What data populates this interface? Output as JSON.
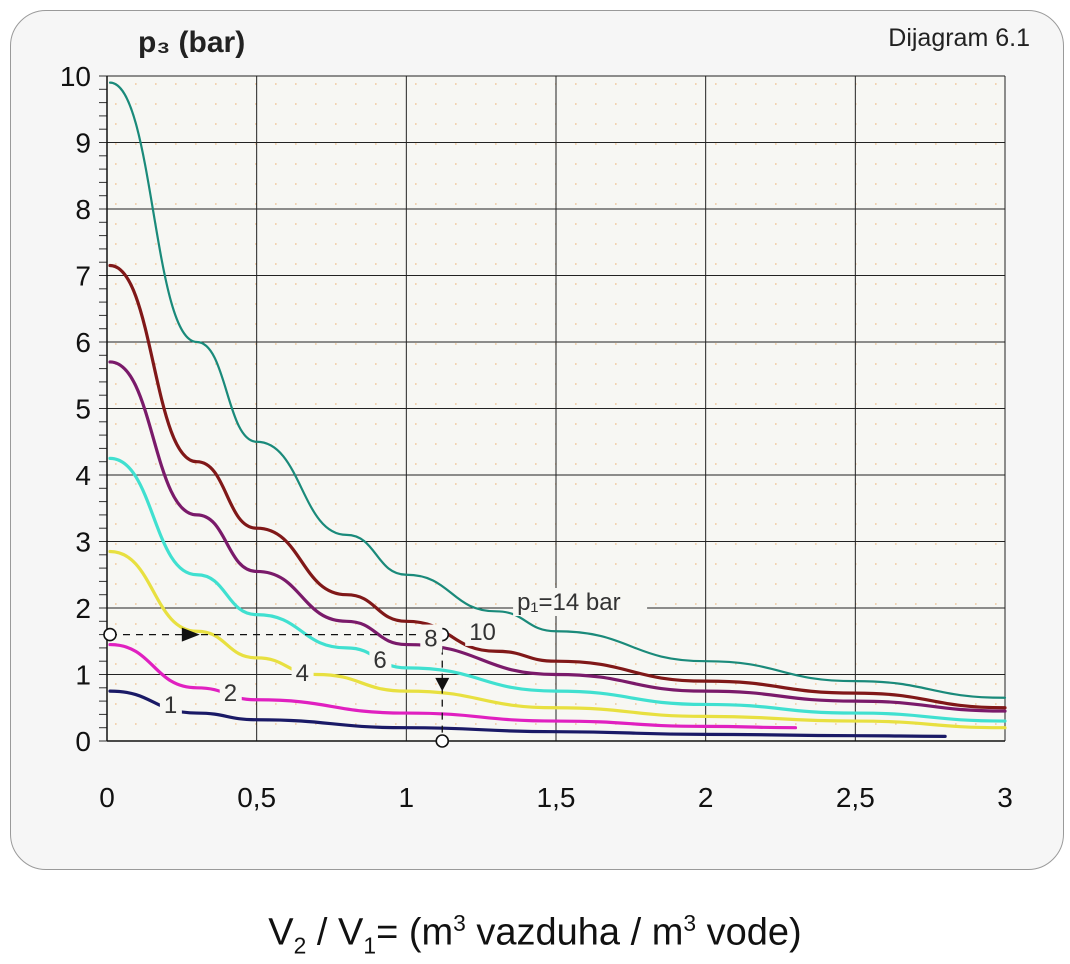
{
  "chart_data": {
    "type": "line",
    "tag": "Dijagram 6.1",
    "ylabel": "p₃ (bar)",
    "xlabel_parts": {
      "v2": "V",
      "sub2": "2",
      "slash": " / ",
      "v1": "V",
      "sub1": "1",
      "eq": "= (m",
      "sup_a": "3",
      "mid": " vazduha / m",
      "sup_b": "3",
      "end": " vode)"
    },
    "xlim": [
      0,
      3
    ],
    "ylim": [
      0,
      10
    ],
    "x_ticks": [
      {
        "value": 0,
        "label": "0"
      },
      {
        "value": 0.5,
        "label": "0,5"
      },
      {
        "value": 1,
        "label": "1"
      },
      {
        "value": 1.5,
        "label": "1,5"
      },
      {
        "value": 2,
        "label": "2"
      },
      {
        "value": 2.5,
        "label": "2,5"
      },
      {
        "value": 3,
        "label": "3"
      }
    ],
    "y_ticks": [
      {
        "value": 0,
        "label": "0"
      },
      {
        "value": 1,
        "label": "1"
      },
      {
        "value": 2,
        "label": "2"
      },
      {
        "value": 3,
        "label": "3"
      },
      {
        "value": 4,
        "label": "4"
      },
      {
        "value": 5,
        "label": "5"
      },
      {
        "value": 6,
        "label": "6"
      },
      {
        "value": 7,
        "label": "7"
      },
      {
        "value": 8,
        "label": "8"
      },
      {
        "value": 9,
        "label": "9"
      },
      {
        "value": 10,
        "label": "10"
      }
    ],
    "grid": true,
    "series": [
      {
        "name": "1",
        "color": "#1a1a66",
        "x_end": 2.8,
        "points": [
          [
            0.01,
            0.75
          ],
          [
            0.3,
            0.42
          ],
          [
            0.5,
            0.32
          ],
          [
            1,
            0.2
          ],
          [
            1.5,
            0.14
          ],
          [
            2,
            0.1
          ],
          [
            2.5,
            0.08
          ],
          [
            2.8,
            0.07
          ]
        ]
      },
      {
        "name": "2",
        "color": "#e020c0",
        "x_end": 2.3,
        "points": [
          [
            0.01,
            1.45
          ],
          [
            0.3,
            0.8
          ],
          [
            0.5,
            0.62
          ],
          [
            1,
            0.42
          ],
          [
            1.5,
            0.3
          ],
          [
            2,
            0.22
          ],
          [
            2.3,
            0.2
          ]
        ]
      },
      {
        "name": "4",
        "color": "#e8e040",
        "x_end": 3.0,
        "points": [
          [
            0.01,
            2.85
          ],
          [
            0.3,
            1.65
          ],
          [
            0.5,
            1.25
          ],
          [
            0.7,
            1.0
          ],
          [
            1,
            0.75
          ],
          [
            1.5,
            0.5
          ],
          [
            2,
            0.37
          ],
          [
            2.5,
            0.3
          ],
          [
            3,
            0.2
          ]
        ]
      },
      {
        "name": "6",
        "color": "#40e0d0",
        "x_end": 3.0,
        "points": [
          [
            0.01,
            4.25
          ],
          [
            0.3,
            2.5
          ],
          [
            0.5,
            1.9
          ],
          [
            0.8,
            1.4
          ],
          [
            1,
            1.1
          ],
          [
            1.5,
            0.75
          ],
          [
            2,
            0.55
          ],
          [
            2.5,
            0.42
          ],
          [
            3,
            0.3
          ]
        ]
      },
      {
        "name": "8",
        "color": "#7a1a6a",
        "x_end": 3.0,
        "points": [
          [
            0.01,
            5.7
          ],
          [
            0.3,
            3.4
          ],
          [
            0.5,
            2.55
          ],
          [
            0.8,
            1.8
          ],
          [
            1,
            1.45
          ],
          [
            1.5,
            1.0
          ],
          [
            2,
            0.75
          ],
          [
            2.5,
            0.6
          ],
          [
            3,
            0.45
          ]
        ]
      },
      {
        "name": "10",
        "color": "#801818",
        "x_end": 3.0,
        "points": [
          [
            0.01,
            7.15
          ],
          [
            0.3,
            4.2
          ],
          [
            0.5,
            3.2
          ],
          [
            0.8,
            2.2
          ],
          [
            1,
            1.8
          ],
          [
            1.3,
            1.35
          ],
          [
            1.5,
            1.2
          ],
          [
            2,
            0.9
          ],
          [
            2.5,
            0.72
          ],
          [
            3,
            0.5
          ]
        ]
      },
      {
        "name": "p₁=14 bar",
        "color": "#1a8a7a",
        "x_end": 3.0,
        "points": [
          [
            0.01,
            9.9
          ],
          [
            0.3,
            6.0
          ],
          [
            0.5,
            4.5
          ],
          [
            0.8,
            3.1
          ],
          [
            1,
            2.5
          ],
          [
            1.3,
            1.95
          ],
          [
            1.5,
            1.65
          ],
          [
            2,
            1.2
          ],
          [
            2.5,
            0.9
          ],
          [
            3,
            0.65
          ]
        ]
      }
    ],
    "curve_labels": [
      {
        "text": "1",
        "x": 0.19,
        "y": 0.42
      },
      {
        "text": "2",
        "x": 0.39,
        "y": 0.6
      },
      {
        "text": "4",
        "x": 0.63,
        "y": 0.9
      },
      {
        "text": "6",
        "x": 0.89,
        "y": 1.1
      },
      {
        "text": "8",
        "x": 1.06,
        "y": 1.42
      },
      {
        "text": "10",
        "x": 1.21,
        "y": 1.52
      },
      {
        "text": "p₁=14 bar",
        "x": 1.37,
        "y": 1.97
      }
    ],
    "example_path": {
      "start": [
        0.01,
        1.6
      ],
      "turn": [
        1.12,
        1.6
      ],
      "end": [
        1.12,
        0.0
      ]
    }
  }
}
